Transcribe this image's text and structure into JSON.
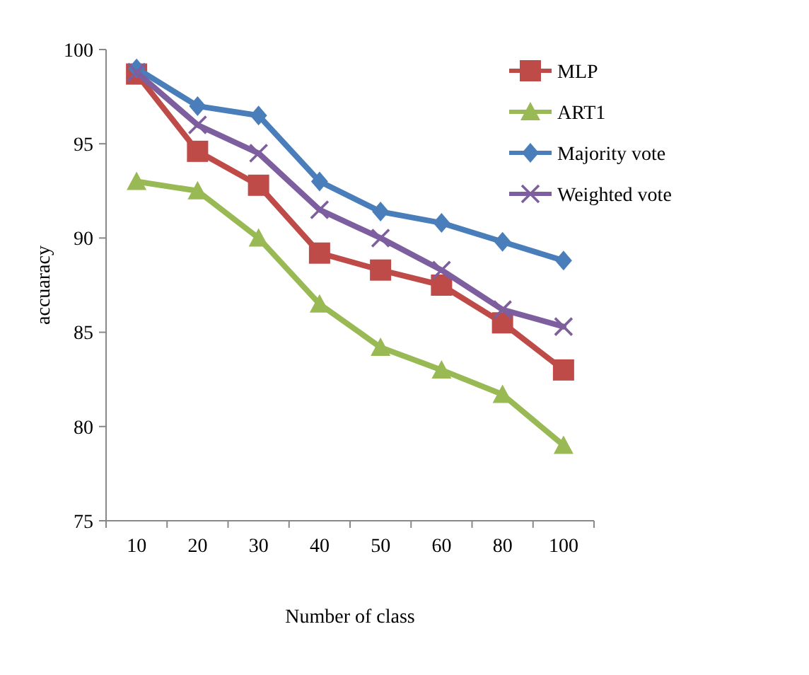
{
  "chart_data": {
    "type": "line",
    "xlabel": "Number of class",
    "ylabel": "accuaracy",
    "categories": [
      "10",
      "20",
      "30",
      "40",
      "50",
      "60",
      "80",
      "100"
    ],
    "ylim": [
      75,
      100
    ],
    "yticks": [
      75,
      80,
      85,
      90,
      95,
      100
    ],
    "grid": false,
    "legend": "top right",
    "series": [
      {
        "name": "MLP",
        "color": "#be4b48",
        "marker": "square",
        "values": [
          98.7,
          94.6,
          92.8,
          89.2,
          88.3,
          87.5,
          85.5,
          83.0
        ]
      },
      {
        "name": "ART1",
        "color": "#98b954",
        "marker": "triangle",
        "values": [
          93.0,
          92.5,
          90.0,
          86.5,
          84.2,
          83.0,
          81.7,
          79.0
        ]
      },
      {
        "name": "Majority vote",
        "color": "#4a7ebb",
        "marker": "diamond",
        "values": [
          99.0,
          97.0,
          96.5,
          93.0,
          91.4,
          90.8,
          89.8,
          88.8
        ]
      },
      {
        "name": "Weighted vote",
        "color": "#7d5fa0",
        "marker": "cross",
        "values": [
          98.8,
          96.0,
          94.5,
          91.5,
          90.0,
          88.3,
          86.2,
          85.3
        ]
      }
    ]
  }
}
